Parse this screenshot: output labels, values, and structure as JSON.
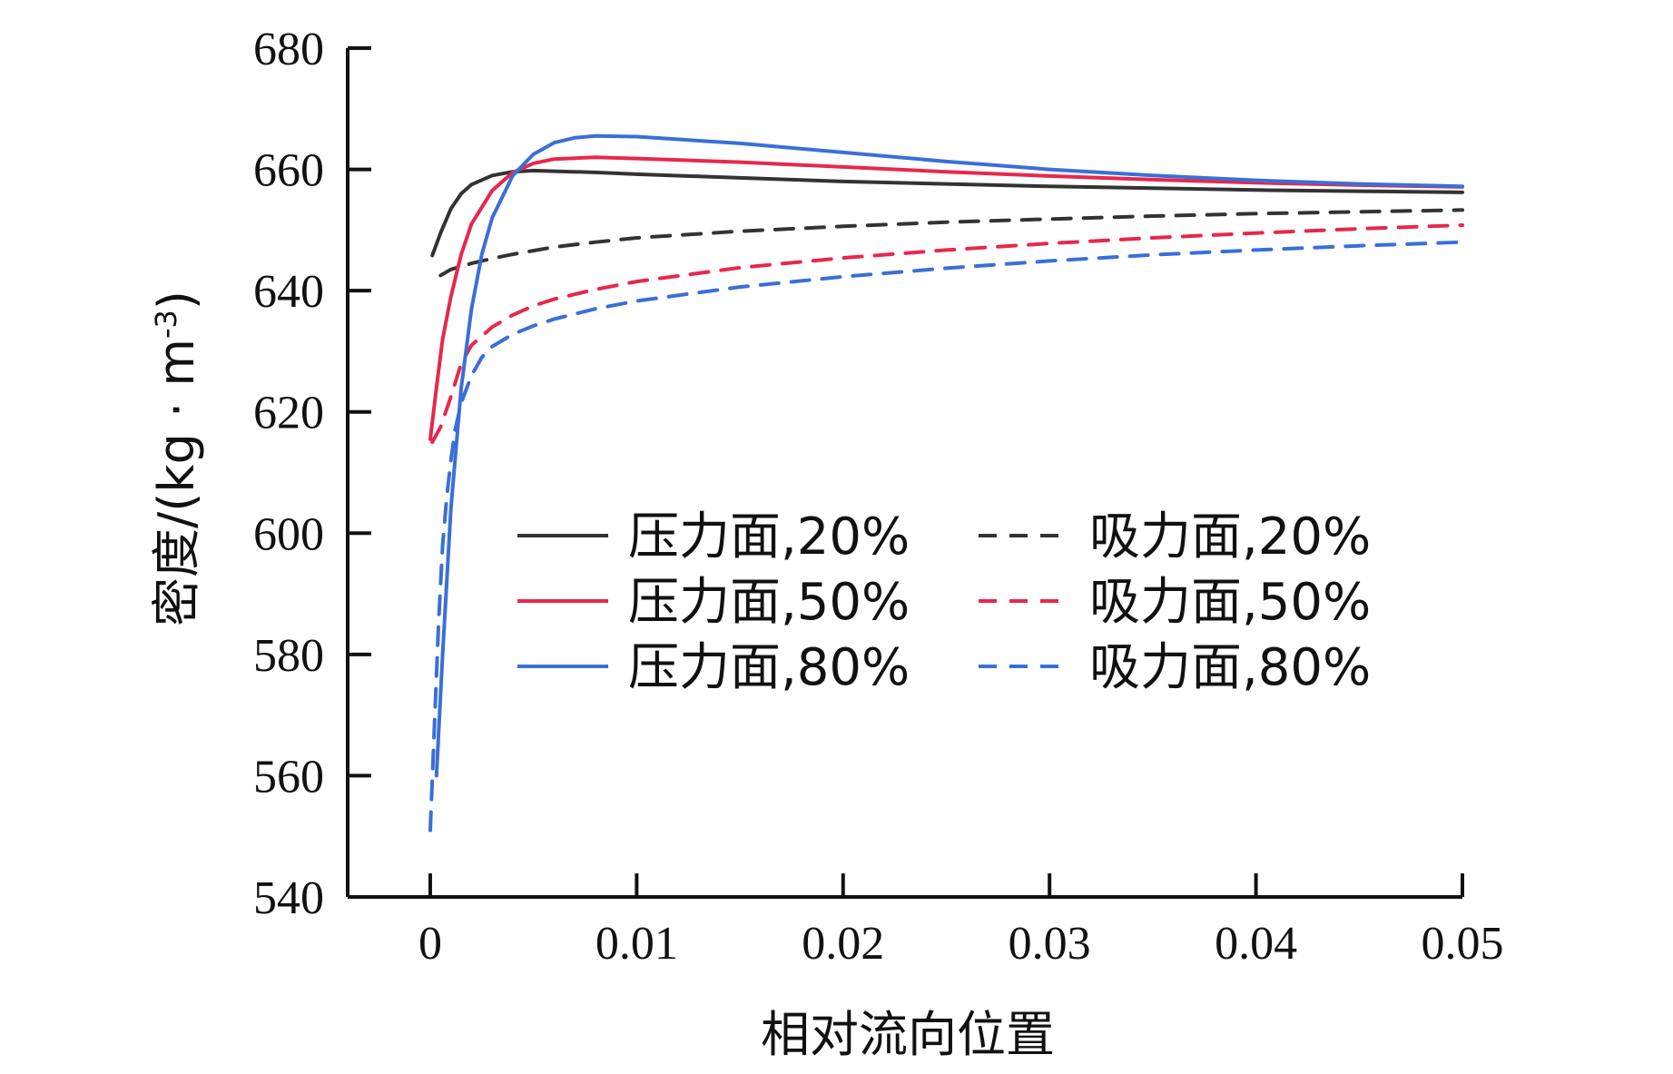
{
  "chart_data": {
    "type": "line",
    "xlabel": "相对流向位置",
    "ylabel_main": "密度/(kg · m",
    "ylabel_sup": "-3",
    "ylabel_close": ")",
    "xlim": [
      -0.004,
      0.05
    ],
    "ylim": [
      540,
      680
    ],
    "xticks": [
      0,
      0.01,
      0.02,
      0.03,
      0.04,
      0.05
    ],
    "xtick_labels": [
      "0",
      "0.01",
      "0.02",
      "0.03",
      "0.04",
      "0.05"
    ],
    "yticks": [
      540,
      560,
      580,
      600,
      620,
      640,
      660,
      680
    ],
    "ytick_labels": [
      "540",
      "560",
      "580",
      "600",
      "620",
      "640",
      "660",
      "680"
    ],
    "grid": false,
    "legend_position": "center-right",
    "series": [
      {
        "name": "压力面,20%",
        "color": "#333333",
        "dash": "solid",
        "x": [
          0.0001,
          0.0005,
          0.001,
          0.0015,
          0.002,
          0.003,
          0.004,
          0.005,
          0.006,
          0.008,
          0.01,
          0.015,
          0.02,
          0.025,
          0.03,
          0.035,
          0.04,
          0.045,
          0.05
        ],
        "y": [
          645.8,
          649.5,
          653.5,
          656.0,
          657.5,
          659.0,
          659.6,
          659.8,
          659.7,
          659.5,
          659.2,
          658.6,
          658.0,
          657.6,
          657.2,
          656.9,
          656.6,
          656.4,
          656.2
        ]
      },
      {
        "name": "吸力面,20%",
        "color": "#333333",
        "dash": "dashed",
        "x": [
          0.0005,
          0.001,
          0.002,
          0.003,
          0.004,
          0.005,
          0.006,
          0.008,
          0.01,
          0.015,
          0.02,
          0.025,
          0.03,
          0.035,
          0.04,
          0.045,
          0.05
        ],
        "y": [
          642.5,
          643.5,
          644.5,
          645.3,
          646.0,
          646.6,
          647.2,
          648.0,
          648.7,
          649.8,
          650.6,
          651.3,
          651.8,
          652.3,
          652.7,
          653.0,
          653.3
        ]
      },
      {
        "name": "压力面,50%",
        "color": "#e8274c",
        "dash": "solid",
        "x": [
          0.0,
          0.0003,
          0.0006,
          0.001,
          0.0015,
          0.002,
          0.003,
          0.004,
          0.005,
          0.006,
          0.008,
          0.01,
          0.015,
          0.02,
          0.025,
          0.03,
          0.035,
          0.04,
          0.045,
          0.05
        ],
        "y": [
          615.5,
          624.0,
          632.0,
          639.0,
          646.0,
          651.0,
          656.5,
          659.5,
          661.0,
          661.7,
          662.0,
          661.8,
          661.2,
          660.4,
          659.6,
          658.9,
          658.3,
          657.8,
          657.4,
          657.1
        ]
      },
      {
        "name": "吸力面,50%",
        "color": "#e8274c",
        "dash": "dashed",
        "x": [
          0.0001,
          0.0005,
          0.001,
          0.0015,
          0.002,
          0.003,
          0.004,
          0.005,
          0.006,
          0.008,
          0.01,
          0.015,
          0.02,
          0.025,
          0.03,
          0.035,
          0.04,
          0.045,
          0.05
        ],
        "y": [
          615.0,
          617.5,
          622.5,
          628.0,
          631.0,
          634.0,
          636.0,
          637.5,
          638.6,
          640.2,
          641.5,
          643.8,
          645.4,
          646.7,
          647.8,
          648.7,
          649.5,
          650.2,
          650.8
        ]
      },
      {
        "name": "压力面,80%",
        "color": "#3a6fd8",
        "dash": "solid",
        "x": [
          0.0003,
          0.0006,
          0.001,
          0.0015,
          0.002,
          0.0025,
          0.003,
          0.004,
          0.005,
          0.006,
          0.007,
          0.008,
          0.01,
          0.015,
          0.02,
          0.025,
          0.03,
          0.035,
          0.04,
          0.045,
          0.05
        ],
        "y": [
          560.0,
          580.0,
          604.0,
          624.0,
          637.0,
          646.0,
          652.0,
          659.0,
          662.5,
          664.4,
          665.2,
          665.5,
          665.4,
          664.3,
          662.8,
          661.3,
          660.0,
          659.0,
          658.2,
          657.6,
          657.2
        ]
      },
      {
        "name": "吸力面,80%",
        "color": "#3a6fd8",
        "dash": "dashed",
        "x": [
          0.0,
          0.0002,
          0.0004,
          0.0006,
          0.0008,
          0.001,
          0.0012,
          0.0015,
          0.002,
          0.0025,
          0.003,
          0.004,
          0.005,
          0.006,
          0.008,
          0.01,
          0.015,
          0.02,
          0.025,
          0.03,
          0.035,
          0.04,
          0.045,
          0.05
        ],
        "y": [
          551.0,
          568.0,
          585.0,
          598.0,
          606.0,
          612.0,
          617.0,
          621.5,
          626.0,
          629.0,
          630.8,
          632.8,
          634.2,
          635.3,
          637.0,
          638.3,
          640.6,
          642.3,
          643.7,
          644.9,
          645.9,
          646.7,
          647.4,
          648.0
        ]
      }
    ]
  }
}
